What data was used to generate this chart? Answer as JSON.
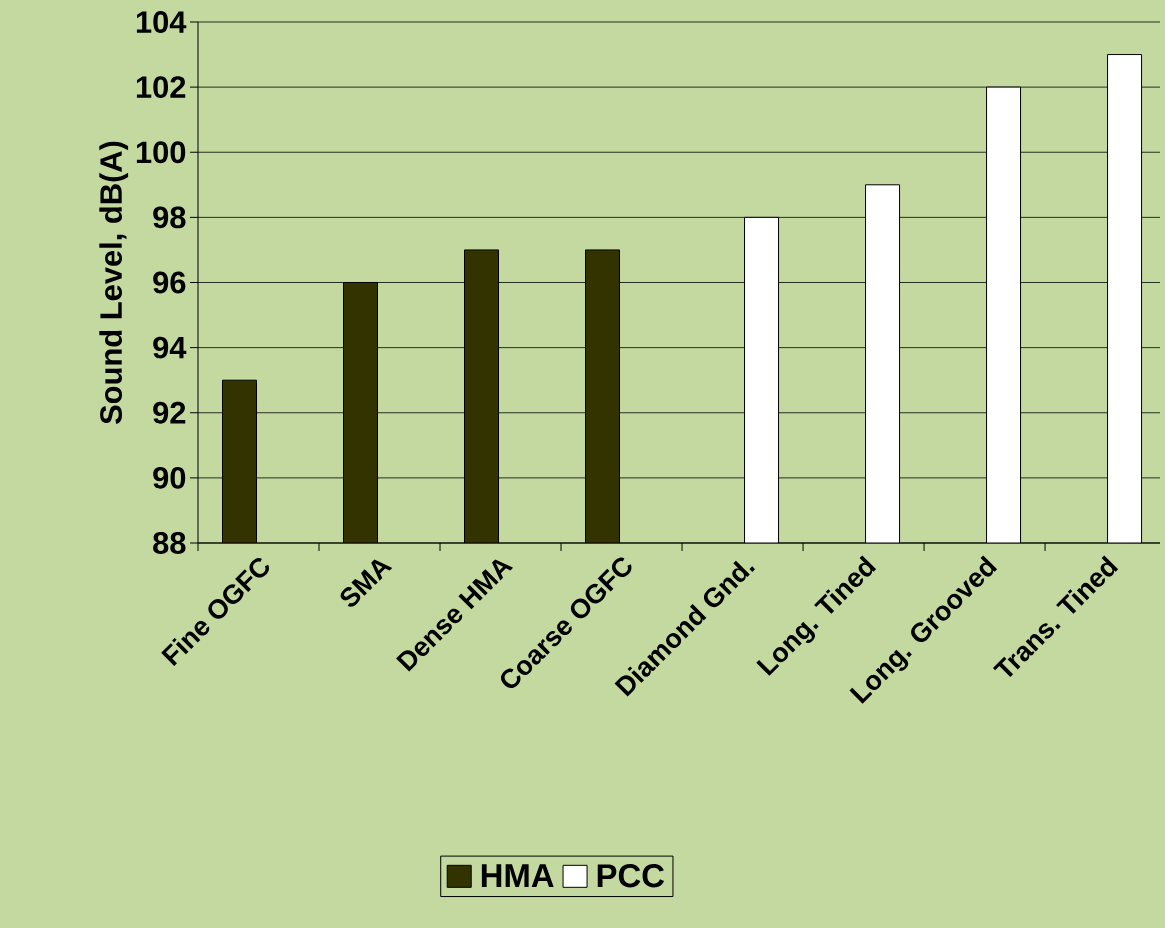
{
  "chart_data": {
    "type": "bar",
    "ylabel": "Sound Level, dB(A)",
    "categories": [
      "Fine OGFC",
      "SMA",
      "Dense HMA",
      "Coarse OGFC",
      "Diamond Gnd.",
      "Long. Tined",
      "Long. Grooved",
      "Trans. Tined"
    ],
    "series": [
      {
        "name": "HMA",
        "color": "#333300",
        "values": [
          93,
          96,
          97,
          97,
          null,
          null,
          null,
          null
        ]
      },
      {
        "name": "PCC",
        "color": "#ffffff",
        "values": [
          null,
          null,
          null,
          null,
          98,
          99,
          102,
          103
        ]
      }
    ],
    "ylim": [
      88,
      104
    ],
    "yticks": [
      88,
      90,
      92,
      94,
      96,
      98,
      100,
      102,
      104
    ],
    "grid": "y",
    "legend": "bottom"
  }
}
